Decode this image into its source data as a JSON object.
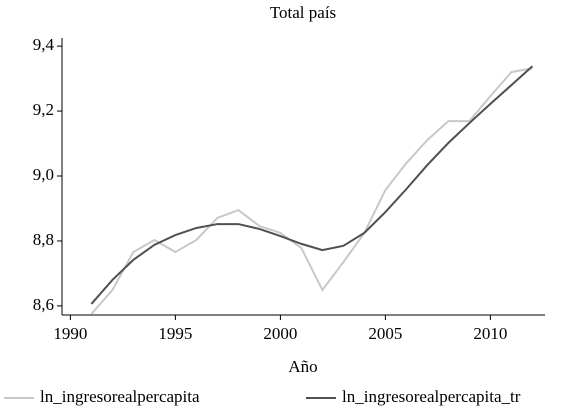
{
  "chart_data": {
    "type": "line",
    "title": "Total país",
    "x_label": "Año",
    "x": [
      1991,
      1992,
      1993,
      1994,
      1995,
      1996,
      1997,
      1998,
      1999,
      2000,
      2001,
      2002,
      2003,
      2004,
      2005,
      2006,
      2007,
      2008,
      2009,
      2010,
      2011,
      2012
    ],
    "series": [
      {
        "name": "ln_ingresorealpercapita",
        "color": "#c8c8c8",
        "values": [
          8.575,
          8.649,
          8.766,
          8.803,
          8.766,
          8.803,
          8.871,
          8.895,
          8.846,
          8.825,
          8.778,
          8.649,
          8.735,
          8.825,
          8.957,
          9.04,
          9.111,
          9.169,
          9.169,
          9.246,
          9.32,
          9.332
        ]
      },
      {
        "name": "ln_ingresorealpercapita_tr",
        "color": "#505050",
        "values": [
          8.606,
          8.68,
          8.742,
          8.788,
          8.818,
          8.84,
          8.852,
          8.852,
          8.837,
          8.815,
          8.791,
          8.772,
          8.785,
          8.825,
          8.889,
          8.96,
          9.034,
          9.102,
          9.163,
          9.222,
          9.28,
          9.338
        ]
      }
    ],
    "xlim": [
      1989.6,
      2012.6
    ],
    "xticks": [
      1990,
      1995,
      2000,
      2005,
      2010
    ],
    "ylim": [
      8.572,
      9.425
    ],
    "yticks": [
      {
        "value": 8.6,
        "label": "8,6"
      },
      {
        "value": 8.8,
        "label": "8,8"
      },
      {
        "value": 9.0,
        "label": "9,0"
      },
      {
        "value": 9.2,
        "label": "9,2"
      },
      {
        "value": 9.4,
        "label": "9,4"
      }
    ]
  }
}
